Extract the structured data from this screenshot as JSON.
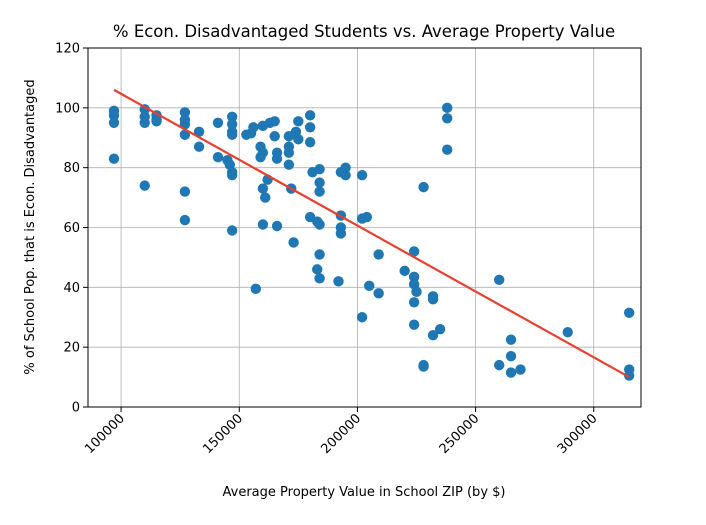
{
  "chart_data": {
    "type": "scatter",
    "title": "% Econ. Disadvantaged Students vs. Average Property Value",
    "xlabel": "Average Property Value in School ZIP (by $)",
    "ylabel": "% of School Pop. that is Econ. Disadvantaged",
    "xlim": [
      86000,
      320000
    ],
    "ylim": [
      0,
      120
    ],
    "xticks": [
      100000,
      150000,
      200000,
      250000,
      300000
    ],
    "xtick_labels": [
      "100000",
      "150000",
      "200000",
      "250000",
      "300000"
    ],
    "yticks": [
      0,
      20,
      40,
      60,
      80,
      100,
      120
    ],
    "ytick_labels": [
      "0",
      "20",
      "40",
      "60",
      "80",
      "100",
      "120"
    ],
    "grid": true,
    "marker_color": "#1f77b4",
    "trendline_color": "#e8402e",
    "trendline": {
      "x": [
        97000,
        315000
      ],
      "y": [
        106,
        10
      ]
    },
    "points": [
      [
        97000,
        99
      ],
      [
        97000,
        97.5
      ],
      [
        97000,
        95
      ],
      [
        97000,
        83
      ],
      [
        110000,
        99.5
      ],
      [
        110000,
        97
      ],
      [
        110000,
        95
      ],
      [
        110000,
        74
      ],
      [
        115000,
        97.5
      ],
      [
        115000,
        96
      ],
      [
        115000,
        95.5
      ],
      [
        127000,
        98.5
      ],
      [
        127000,
        96
      ],
      [
        127000,
        94.5
      ],
      [
        127000,
        91
      ],
      [
        127000,
        72
      ],
      [
        127000,
        62.5
      ],
      [
        133000,
        92
      ],
      [
        133000,
        87
      ],
      [
        141000,
        95
      ],
      [
        141000,
        83.5
      ],
      [
        145000,
        82.5
      ],
      [
        146000,
        81
      ],
      [
        147000,
        97
      ],
      [
        147000,
        94.5
      ],
      [
        147000,
        92
      ],
      [
        147000,
        91
      ],
      [
        147000,
        78.5
      ],
      [
        147000,
        77.5
      ],
      [
        147000,
        59
      ],
      [
        153000,
        91
      ],
      [
        155000,
        91.5
      ],
      [
        156000,
        93.5
      ],
      [
        157000,
        39.5
      ],
      [
        160000,
        94
      ],
      [
        159000,
        87
      ],
      [
        160000,
        85
      ],
      [
        159000,
        83.5
      ],
      [
        160000,
        73
      ],
      [
        160000,
        61
      ],
      [
        161000,
        70
      ],
      [
        163000,
        95
      ],
      [
        165000,
        95.5
      ],
      [
        165000,
        90.5
      ],
      [
        166000,
        85
      ],
      [
        166000,
        83
      ],
      [
        162000,
        76
      ],
      [
        166000,
        60.5
      ],
      [
        171000,
        90.5
      ],
      [
        171000,
        87
      ],
      [
        171000,
        85
      ],
      [
        171000,
        81
      ],
      [
        172000,
        73
      ],
      [
        174000,
        92
      ],
      [
        175000,
        95.5
      ],
      [
        175000,
        89.5
      ],
      [
        173000,
        55
      ],
      [
        180000,
        97.5
      ],
      [
        180000,
        93.5
      ],
      [
        180000,
        88.5
      ],
      [
        181000,
        78.5
      ],
      [
        180000,
        63.5
      ],
      [
        183000,
        62
      ],
      [
        184000,
        61
      ],
      [
        184000,
        79.5
      ],
      [
        184000,
        75
      ],
      [
        184000,
        72
      ],
      [
        184000,
        51
      ],
      [
        183000,
        46
      ],
      [
        184000,
        43
      ],
      [
        193000,
        78.5
      ],
      [
        195000,
        80
      ],
      [
        195000,
        77.5
      ],
      [
        193000,
        64
      ],
      [
        193000,
        60
      ],
      [
        193000,
        58
      ],
      [
        192000,
        42
      ],
      [
        202000,
        77.5
      ],
      [
        202000,
        63
      ],
      [
        204000,
        63.5
      ],
      [
        202000,
        30
      ],
      [
        205000,
        40.5
      ],
      [
        209000,
        51
      ],
      [
        209000,
        38
      ],
      [
        220000,
        45.5
      ],
      [
        224000,
        52
      ],
      [
        224000,
        43.5
      ],
      [
        224000,
        41
      ],
      [
        225000,
        38.5
      ],
      [
        224000,
        35
      ],
      [
        224000,
        27.5
      ],
      [
        228000,
        73.5
      ],
      [
        228000,
        14
      ],
      [
        228000,
        13.5
      ],
      [
        232000,
        37
      ],
      [
        232000,
        36
      ],
      [
        232000,
        24
      ],
      [
        235000,
        26
      ],
      [
        238000,
        100
      ],
      [
        238000,
        96.5
      ],
      [
        238000,
        86
      ],
      [
        260000,
        42.5
      ],
      [
        260000,
        14
      ],
      [
        265000,
        22.5
      ],
      [
        265000,
        17
      ],
      [
        265000,
        11.5
      ],
      [
        269000,
        12.5
      ],
      [
        289000,
        25
      ],
      [
        315000,
        31.5
      ],
      [
        315000,
        12.5
      ],
      [
        315000,
        10.5
      ]
    ]
  }
}
